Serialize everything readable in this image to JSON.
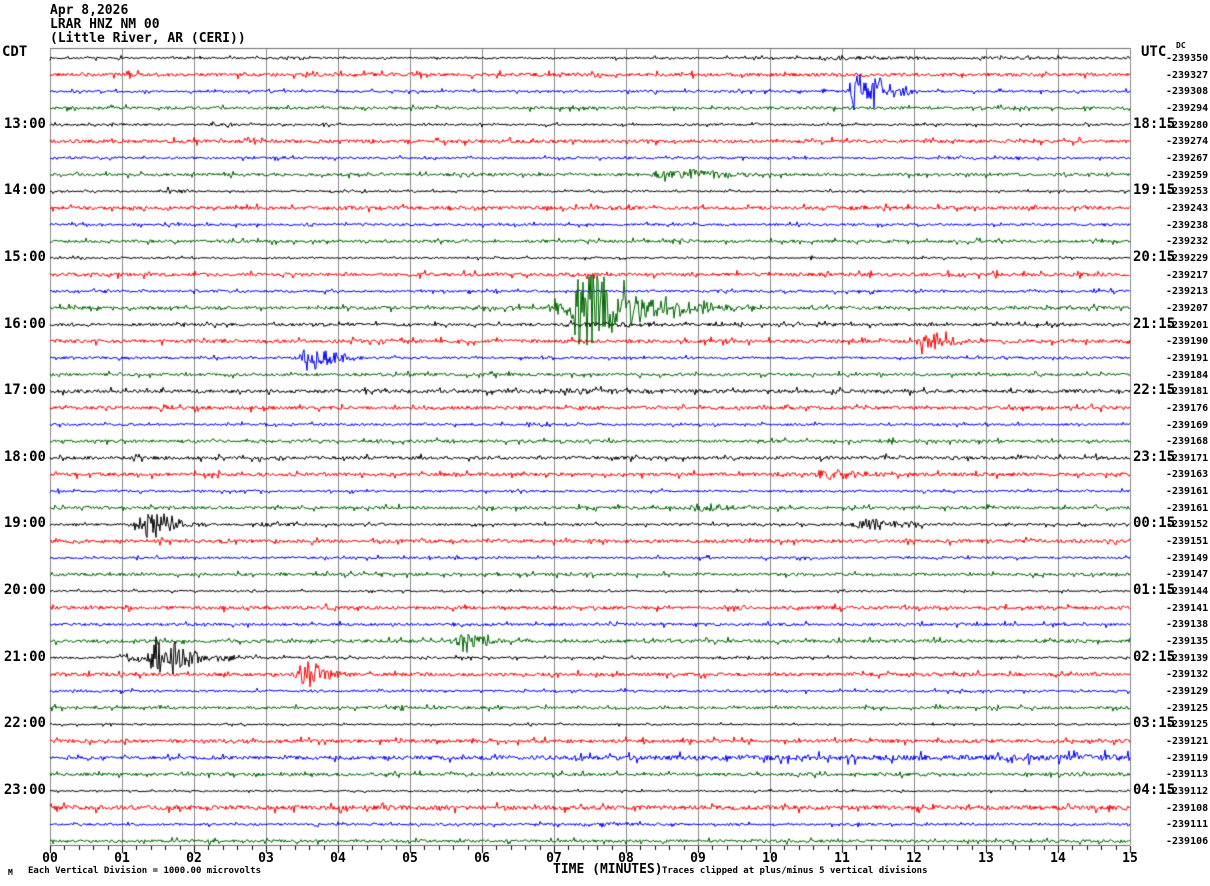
{
  "header": {
    "date": "Apr 8,2026",
    "station": "LRAR HNZ NM 00",
    "location": "(Little River, AR (CERI))",
    "left_timezone": "CDT",
    "right_timezone": "UTC",
    "dc_column_label": "DC"
  },
  "footer": {
    "corner_glyph": "M",
    "scale_note": "Each Vertical Division = 1000.00 microvolts",
    "xaxis_title": "TIME (MINUTES)",
    "clip_note": "Traces clipped at plus/minus 5 vertical divisions"
  },
  "colors": {
    "black": "#000000",
    "red": "#ff0000",
    "blue": "#0000ff",
    "green": "#006600",
    "grid": "#8a8a8a",
    "frame": "#6e6e6e"
  },
  "chart_data": {
    "type": "line",
    "title": "LRAR HNZ NM 00 (Little River, AR (CERI)) helicorder Apr 8,2026",
    "xlabel": "TIME (MINUTES)",
    "x_range_minutes": [
      0,
      15
    ],
    "x_tick_labels": [
      "00",
      "01",
      "02",
      "03",
      "04",
      "05",
      "06",
      "07",
      "08",
      "09",
      "10",
      "11",
      "12",
      "13",
      "14",
      "15"
    ],
    "minor_ticks_per_minute": 5,
    "vertical_division_microvolts": 1000.0,
    "clip_divisions": 5,
    "traces": [
      {
        "color": "black",
        "cdt": "",
        "utc": "",
        "dc": "-239350",
        "noise": 1.0,
        "events": [
          {
            "t": 3.3,
            "amp": 2.2,
            "dur": 0.4
          },
          {
            "t": 10.8,
            "amp": 2.6,
            "dur": 1.4
          },
          {
            "t": 13.0,
            "amp": 2.6,
            "dur": 1.0
          }
        ]
      },
      {
        "color": "red",
        "cdt": "",
        "utc": "",
        "dc": "-239327",
        "noise": 1.7,
        "events": []
      },
      {
        "color": "blue",
        "cdt": "",
        "utc": "",
        "dc": "-239308",
        "noise": 1.1,
        "events": [
          {
            "t": 11.22,
            "amp": 30,
            "dur": 0.38
          },
          {
            "t": 11.75,
            "amp": 6,
            "dur": 0.3
          }
        ]
      },
      {
        "color": "green",
        "cdt": "",
        "utc": "",
        "dc": "-239294",
        "noise": 1.4,
        "events": []
      },
      {
        "color": "black",
        "cdt": "13:00",
        "utc": "18:15",
        "dc": "-239280",
        "noise": 1.0,
        "events": [
          {
            "t": 2.35,
            "amp": 2.6,
            "dur": 0.5
          }
        ]
      },
      {
        "color": "red",
        "cdt": "",
        "utc": "",
        "dc": "-239274",
        "noise": 1.7,
        "events": []
      },
      {
        "color": "blue",
        "cdt": "",
        "utc": "",
        "dc": "-239267",
        "noise": 1.1,
        "events": [
          {
            "t": 12.4,
            "amp": 2.4,
            "dur": 0.4
          }
        ]
      },
      {
        "color": "green",
        "cdt": "",
        "utc": "",
        "dc": "-239259",
        "noise": 1.4,
        "events": [
          {
            "t": 8.6,
            "amp": 8,
            "dur": 0.9
          },
          {
            "t": 5.7,
            "amp": 3,
            "dur": 0.3
          }
        ]
      },
      {
        "color": "black",
        "cdt": "14:00",
        "utc": "19:15",
        "dc": "-239253",
        "noise": 0.9,
        "events": [
          {
            "t": 1.6,
            "amp": 3,
            "dur": 0.4
          },
          {
            "t": 3.9,
            "amp": 2.5,
            "dur": 0.3
          }
        ]
      },
      {
        "color": "red",
        "cdt": "",
        "utc": "",
        "dc": "-239243",
        "noise": 1.7,
        "events": []
      },
      {
        "color": "blue",
        "cdt": "",
        "utc": "",
        "dc": "-239238",
        "noise": 1.1,
        "events": []
      },
      {
        "color": "green",
        "cdt": "",
        "utc": "",
        "dc": "-239232",
        "noise": 1.4,
        "events": []
      },
      {
        "color": "black",
        "cdt": "15:00",
        "utc": "20:15",
        "dc": "-239229",
        "noise": 0.9,
        "events": []
      },
      {
        "color": "red",
        "cdt": "",
        "utc": "",
        "dc": "-239217",
        "noise": 1.7,
        "events": []
      },
      {
        "color": "blue",
        "cdt": "",
        "utc": "",
        "dc": "-239213",
        "noise": 1.2,
        "events": []
      },
      {
        "color": "green",
        "cdt": "",
        "utc": "",
        "dc": "-239207",
        "noise": 1.6,
        "events": [
          {
            "t": 7.0,
            "amp": 10,
            "dur": 0.3
          },
          {
            "t": 7.42,
            "amp": 65,
            "dur": 0.5
          },
          {
            "t": 8.05,
            "amp": 20,
            "dur": 0.7
          },
          {
            "t": 8.6,
            "amp": 8,
            "dur": 1.1
          }
        ]
      },
      {
        "color": "black",
        "cdt": "16:00",
        "utc": "21:15",
        "dc": "-239201",
        "noise": 1.4,
        "events": [
          {
            "t": 7.4,
            "amp": 2.5,
            "dur": 1.2
          }
        ]
      },
      {
        "color": "red",
        "cdt": "",
        "utc": "",
        "dc": "-239190",
        "noise": 1.7,
        "events": [
          {
            "t": 12.15,
            "amp": 15,
            "dur": 0.42
          }
        ]
      },
      {
        "color": "blue",
        "cdt": "",
        "utc": "",
        "dc": "-239191",
        "noise": 1.2,
        "events": [
          {
            "t": 3.6,
            "amp": 14,
            "dur": 0.5
          }
        ]
      },
      {
        "color": "green",
        "cdt": "",
        "utc": "",
        "dc": "-239184",
        "noise": 1.4,
        "events": []
      },
      {
        "color": "black",
        "cdt": "17:00",
        "utc": "22:15",
        "dc": "-239181",
        "noise": 1.7,
        "events": [
          {
            "t": 7.3,
            "amp": 2.8,
            "dur": 1.5
          }
        ]
      },
      {
        "color": "red",
        "cdt": "",
        "utc": "",
        "dc": "-239176",
        "noise": 1.7,
        "events": []
      },
      {
        "color": "blue",
        "cdt": "",
        "utc": "",
        "dc": "-239169",
        "noise": 1.1,
        "events": []
      },
      {
        "color": "green",
        "cdt": "",
        "utc": "",
        "dc": "-239168",
        "noise": 1.4,
        "events": []
      },
      {
        "color": "black",
        "cdt": "18:00",
        "utc": "23:15",
        "dc": "-239171",
        "noise": 1.6,
        "events": []
      },
      {
        "color": "red",
        "cdt": "",
        "utc": "",
        "dc": "-239163",
        "noise": 1.7,
        "events": [
          {
            "t": 10.72,
            "amp": 7,
            "dur": 0.6
          }
        ]
      },
      {
        "color": "blue",
        "cdt": "",
        "utc": "",
        "dc": "-239161",
        "noise": 1.1,
        "events": []
      },
      {
        "color": "green",
        "cdt": "",
        "utc": "",
        "dc": "-239161",
        "noise": 1.5,
        "events": [
          {
            "t": 9.05,
            "amp": 6,
            "dur": 0.5
          }
        ]
      },
      {
        "color": "black",
        "cdt": "19:00",
        "utc": "00:15",
        "dc": "-239152",
        "noise": 1.1,
        "events": [
          {
            "t": 1.32,
            "amp": 17,
            "dur": 0.5
          },
          {
            "t": 3.0,
            "amp": 3,
            "dur": 0.35
          },
          {
            "t": 11.28,
            "amp": 9,
            "dur": 0.5
          },
          {
            "t": 11.9,
            "amp": 4,
            "dur": 0.4
          }
        ]
      },
      {
        "color": "red",
        "cdt": "",
        "utc": "",
        "dc": "-239151",
        "noise": 1.7,
        "events": []
      },
      {
        "color": "blue",
        "cdt": "",
        "utc": "",
        "dc": "-239149",
        "noise": 1.1,
        "events": []
      },
      {
        "color": "green",
        "cdt": "",
        "utc": "",
        "dc": "-239147",
        "noise": 1.4,
        "events": []
      },
      {
        "color": "black",
        "cdt": "20:00",
        "utc": "01:15",
        "dc": "-239144",
        "noise": 0.9,
        "events": []
      },
      {
        "color": "red",
        "cdt": "",
        "utc": "",
        "dc": "-239141",
        "noise": 1.7,
        "events": []
      },
      {
        "color": "blue",
        "cdt": "",
        "utc": "",
        "dc": "-239138",
        "noise": 1.3,
        "events": []
      },
      {
        "color": "green",
        "cdt": "",
        "utc": "",
        "dc": "-239135",
        "noise": 1.6,
        "events": [
          {
            "t": 5.72,
            "amp": 13,
            "dur": 0.38
          }
        ]
      },
      {
        "color": "black",
        "cdt": "21:00",
        "utc": "02:15",
        "dc": "-239139",
        "noise": 1.0,
        "events": [
          {
            "t": 1.0,
            "amp": 6,
            "dur": 0.3
          },
          {
            "t": 1.48,
            "amp": 22,
            "dur": 0.55
          },
          {
            "t": 2.4,
            "amp": 5,
            "dur": 0.5
          }
        ]
      },
      {
        "color": "red",
        "cdt": "",
        "utc": "",
        "dc": "-239132",
        "noise": 1.7,
        "events": [
          {
            "t": 3.52,
            "amp": 17,
            "dur": 0.4
          }
        ]
      },
      {
        "color": "blue",
        "cdt": "",
        "utc": "",
        "dc": "-239129",
        "noise": 1.1,
        "events": []
      },
      {
        "color": "green",
        "cdt": "",
        "utc": "",
        "dc": "-239125",
        "noise": 1.4,
        "events": []
      },
      {
        "color": "black",
        "cdt": "22:00",
        "utc": "03:15",
        "dc": "-239125",
        "noise": 0.8,
        "events": []
      },
      {
        "color": "red",
        "cdt": "",
        "utc": "",
        "dc": "-239121",
        "noise": 1.7,
        "events": []
      },
      {
        "color": "blue",
        "cdt": "",
        "utc": "",
        "dc": "-239119",
        "noise": 1.4,
        "ramp": 2.2,
        "events": []
      },
      {
        "color": "green",
        "cdt": "",
        "utc": "",
        "dc": "-239113",
        "noise": 1.5,
        "events": []
      },
      {
        "color": "black",
        "cdt": "23:00",
        "utc": "04:15",
        "dc": "-239112",
        "noise": 0.8,
        "events": []
      },
      {
        "color": "red",
        "cdt": "",
        "utc": "",
        "dc": "-239108",
        "noise": 2.2,
        "events": []
      },
      {
        "color": "blue",
        "cdt": "",
        "utc": "",
        "dc": "-239111",
        "noise": 1.1,
        "events": [
          {
            "t": 7.5,
            "amp": 2.2,
            "dur": 0.8
          }
        ]
      },
      {
        "color": "green",
        "cdt": "",
        "utc": "",
        "dc": "-239106",
        "noise": 1.4,
        "events": []
      }
    ]
  },
  "layout_note": "helicorder webicorder display"
}
